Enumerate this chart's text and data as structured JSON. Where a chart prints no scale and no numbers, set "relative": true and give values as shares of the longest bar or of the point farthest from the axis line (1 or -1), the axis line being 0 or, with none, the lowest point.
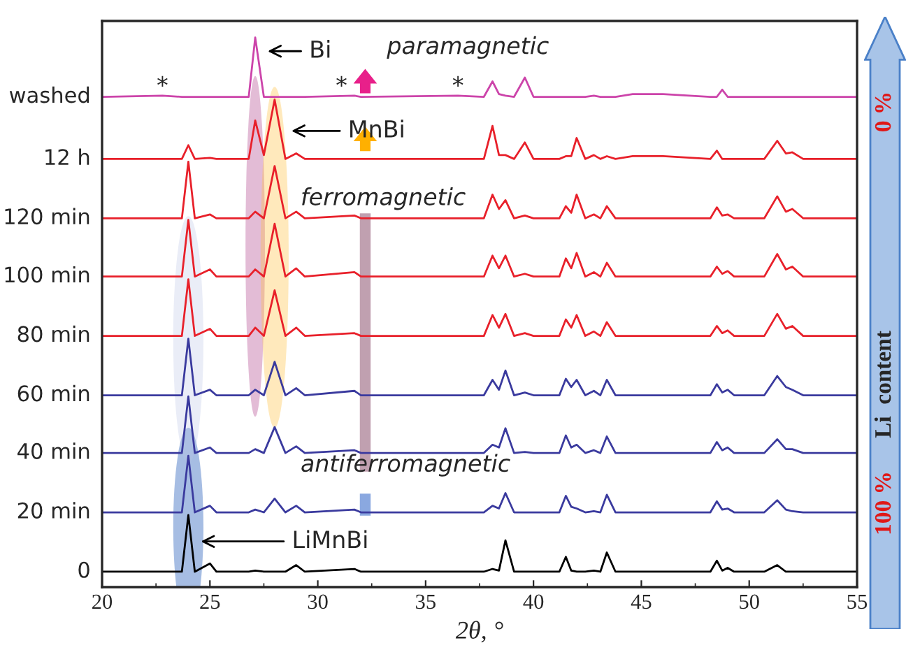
{
  "chart_data": {
    "type": "line",
    "relative": true,
    "xlabel": "2θ, °",
    "xlim": [
      20,
      55
    ],
    "xticks": [
      20,
      25,
      30,
      35,
      40,
      45,
      50,
      55
    ],
    "legend": false,
    "grid": false,
    "tick_labels": "x",
    "x": [
      20,
      22.8,
      23.7,
      24.0,
      24.3,
      25.0,
      25.3,
      26.8,
      27.1,
      27.5,
      28.0,
      28.5,
      29.0,
      29.4,
      31.7,
      32.0,
      36.5,
      37.7,
      38.1,
      38.4,
      38.7,
      39.1,
      39.6,
      40.0,
      41.2,
      41.5,
      41.75,
      42.0,
      42.4,
      42.8,
      43.1,
      43.4,
      43.8,
      44.6,
      46.0,
      48.2,
      48.5,
      48.75,
      49.0,
      49.3,
      50.7,
      51.3,
      51.7,
      52.0,
      52.5,
      55
    ],
    "series": [
      {
        "name": "0",
        "color": "#000000",
        "values": [
          0.028,
          0.028,
          0.028,
          0.131,
          0.028,
          0.043,
          0.028,
          0.028,
          0.03,
          0.028,
          0.028,
          0.028,
          0.04,
          0.028,
          0.033,
          0.028,
          0.028,
          0.028,
          0.033,
          0.03,
          0.085,
          0.028,
          0.028,
          0.028,
          0.028,
          0.055,
          0.03,
          0.028,
          0.028,
          0.03,
          0.028,
          0.063,
          0.028,
          0.028,
          0.028,
          0.028,
          0.048,
          0.03,
          0.035,
          0.028,
          0.028,
          0.04,
          0.028,
          0.028,
          0.028,
          0.028
        ]
      },
      {
        "name": "20 min",
        "color": "#3a3a9e",
        "values": [
          0.136,
          0.136,
          0.136,
          0.239,
          0.136,
          0.148,
          0.136,
          0.136,
          0.141,
          0.136,
          0.161,
          0.136,
          0.148,
          0.136,
          0.141,
          0.136,
          0.136,
          0.136,
          0.148,
          0.143,
          0.171,
          0.136,
          0.136,
          0.136,
          0.136,
          0.166,
          0.146,
          0.143,
          0.136,
          0.138,
          0.136,
          0.168,
          0.136,
          0.136,
          0.136,
          0.136,
          0.156,
          0.141,
          0.143,
          0.136,
          0.136,
          0.158,
          0.141,
          0.138,
          0.136,
          0.136
        ]
      },
      {
        "name": "40 min",
        "color": "#3a3a9e",
        "values": [
          0.244,
          0.244,
          0.244,
          0.347,
          0.244,
          0.254,
          0.244,
          0.244,
          0.251,
          0.244,
          0.291,
          0.244,
          0.256,
          0.244,
          0.249,
          0.244,
          0.244,
          0.244,
          0.259,
          0.254,
          0.289,
          0.244,
          0.246,
          0.244,
          0.244,
          0.276,
          0.254,
          0.259,
          0.244,
          0.249,
          0.244,
          0.274,
          0.244,
          0.244,
          0.244,
          0.244,
          0.264,
          0.249,
          0.254,
          0.244,
          0.244,
          0.269,
          0.251,
          0.251,
          0.244,
          0.244
        ]
      },
      {
        "name": "60 min",
        "color": "#3a3a9e",
        "values": [
          0.349,
          0.349,
          0.349,
          0.452,
          0.349,
          0.359,
          0.349,
          0.349,
          0.359,
          0.349,
          0.41,
          0.349,
          0.362,
          0.349,
          0.357,
          0.349,
          0.349,
          0.349,
          0.377,
          0.359,
          0.394,
          0.349,
          0.354,
          0.349,
          0.349,
          0.379,
          0.364,
          0.377,
          0.349,
          0.357,
          0.349,
          0.377,
          0.349,
          0.349,
          0.349,
          0.349,
          0.369,
          0.354,
          0.359,
          0.349,
          0.349,
          0.384,
          0.364,
          0.359,
          0.349,
          0.349
        ]
      },
      {
        "name": "80 min",
        "color": "#e8202a",
        "values": [
          0.457,
          0.457,
          0.457,
          0.56,
          0.457,
          0.47,
          0.457,
          0.457,
          0.472,
          0.457,
          0.54,
          0.457,
          0.472,
          0.457,
          0.462,
          0.457,
          0.457,
          0.457,
          0.495,
          0.472,
          0.497,
          0.457,
          0.462,
          0.457,
          0.457,
          0.487,
          0.472,
          0.495,
          0.457,
          0.465,
          0.457,
          0.482,
          0.457,
          0.457,
          0.457,
          0.457,
          0.475,
          0.462,
          0.467,
          0.457,
          0.457,
          0.497,
          0.47,
          0.475,
          0.457,
          0.457
        ]
      },
      {
        "name": "100 min",
        "color": "#e8202a",
        "values": [
          0.565,
          0.565,
          0.565,
          0.668,
          0.565,
          0.578,
          0.565,
          0.565,
          0.578,
          0.565,
          0.661,
          0.565,
          0.58,
          0.565,
          0.573,
          0.565,
          0.565,
          0.565,
          0.603,
          0.58,
          0.603,
          0.565,
          0.57,
          0.565,
          0.565,
          0.598,
          0.58,
          0.608,
          0.565,
          0.573,
          0.565,
          0.59,
          0.565,
          0.565,
          0.565,
          0.565,
          0.583,
          0.57,
          0.575,
          0.565,
          0.565,
          0.606,
          0.578,
          0.583,
          0.565,
          0.565
        ]
      },
      {
        "name": "120 min",
        "color": "#e8202a",
        "values": [
          0.671,
          0.671,
          0.671,
          0.774,
          0.671,
          0.678,
          0.671,
          0.671,
          0.683,
          0.671,
          0.766,
          0.671,
          0.683,
          0.671,
          0.676,
          0.671,
          0.671,
          0.671,
          0.714,
          0.688,
          0.704,
          0.671,
          0.676,
          0.671,
          0.671,
          0.693,
          0.681,
          0.714,
          0.671,
          0.678,
          0.671,
          0.693,
          0.671,
          0.671,
          0.671,
          0.671,
          0.691,
          0.676,
          0.678,
          0.671,
          0.671,
          0.711,
          0.683,
          0.688,
          0.671,
          0.671
        ]
      },
      {
        "name": "12 h",
        "color": "#e8202a",
        "values": [
          0.779,
          0.779,
          0.779,
          0.804,
          0.779,
          0.781,
          0.779,
          0.779,
          0.849,
          0.786,
          0.887,
          0.779,
          0.789,
          0.779,
          0.779,
          0.779,
          0.779,
          0.779,
          0.839,
          0.786,
          0.786,
          0.779,
          0.809,
          0.779,
          0.779,
          0.784,
          0.784,
          0.817,
          0.779,
          0.786,
          0.779,
          0.784,
          0.779,
          0.784,
          0.784,
          0.779,
          0.794,
          0.779,
          0.779,
          0.779,
          0.779,
          0.812,
          0.789,
          0.791,
          0.779,
          0.779
        ]
      },
      {
        "name": "washed",
        "color": "#cc44aa",
        "values": [
          0.892,
          0.894,
          0.892,
          0.892,
          0.892,
          0.892,
          0.892,
          0.892,
          1.0,
          0.892,
          0.892,
          0.892,
          0.892,
          0.892,
          0.894,
          0.892,
          0.894,
          0.892,
          0.92,
          0.897,
          0.894,
          0.892,
          0.927,
          0.892,
          0.892,
          0.892,
          0.892,
          0.892,
          0.892,
          0.894,
          0.892,
          0.892,
          0.892,
          0.897,
          0.897,
          0.892,
          0.892,
          0.905,
          0.892,
          0.892,
          0.892,
          0.892,
          0.892,
          0.892,
          0.892,
          0.892
        ]
      }
    ],
    "annotations": [
      "Bi",
      "MnBi",
      "LiMnBi",
      "*",
      "*",
      "*",
      "paramagnetic",
      "ferromagnetic",
      "antiferromagnetic",
      "Li  content",
      "0 %",
      "100 %"
    ]
  }
}
